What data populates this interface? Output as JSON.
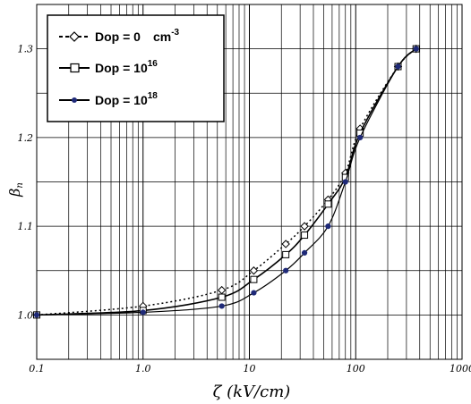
{
  "chart_data": {
    "type": "line",
    "x_scale": "log",
    "xlim": [
      0.1,
      1000
    ],
    "ylim": [
      0.95,
      1.35
    ],
    "grid": true,
    "xlabel": "ζ (kV/cm)",
    "ylabel_main": "β",
    "ylabel_sub": "n",
    "x_tick_labels": [
      "0.1",
      "1.0",
      "10",
      "100",
      "1000"
    ],
    "x_tick_values": [
      0.1,
      1,
      10,
      100,
      1000
    ],
    "y_tick_labels": [
      "1.0",
      "1.1",
      "1.2",
      "1.3"
    ],
    "y_tick_values": [
      1.0,
      1.1,
      1.2,
      1.3
    ],
    "legend_position": "top-left",
    "colors": {
      "dop1e18": "#1f2a78",
      "line": "#000000"
    },
    "series": [
      {
        "legend_prefix": "Dop = 0",
        "legend_unit": "cm",
        "legend_sup": "-3",
        "line_style": "dotted",
        "marker": "open-diamond",
        "x": [
          0.1,
          1,
          5.5,
          11,
          22,
          33,
          55,
          80,
          110,
          250,
          370
        ],
        "y": [
          1.0,
          1.01,
          1.028,
          1.05,
          1.08,
          1.1,
          1.13,
          1.16,
          1.21,
          1.28,
          1.3
        ]
      },
      {
        "legend_prefix": "Dop = 10",
        "legend_unit": "",
        "legend_sup": "16",
        "line_style": "solid",
        "marker": "open-square",
        "x": [
          0.1,
          1,
          5.5,
          11,
          22,
          33,
          55,
          80,
          110,
          250,
          370
        ],
        "y": [
          1.0,
          1.005,
          1.02,
          1.04,
          1.068,
          1.09,
          1.125,
          1.155,
          1.205,
          1.28,
          1.3
        ]
      },
      {
        "legend_prefix": "Dop = 10",
        "legend_unit": "",
        "legend_sup": "18",
        "line_style": "solid",
        "marker": "filled-circle",
        "x": [
          0.1,
          1,
          5.5,
          11,
          22,
          33,
          55,
          80,
          110,
          250,
          370
        ],
        "y": [
          1.0,
          1.003,
          1.01,
          1.025,
          1.05,
          1.07,
          1.1,
          1.15,
          1.2,
          1.28,
          1.3
        ]
      }
    ]
  }
}
